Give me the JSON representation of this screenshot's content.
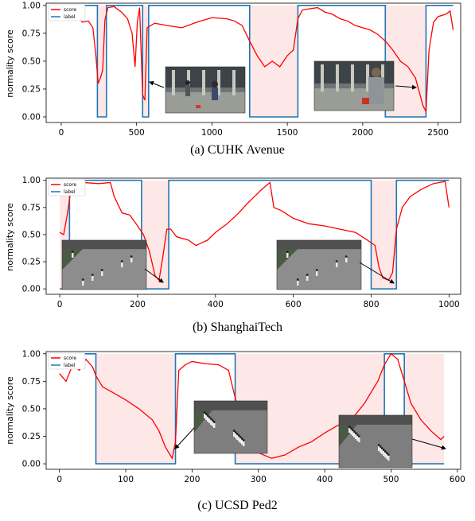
{
  "chart_data": [
    {
      "type": "line",
      "caption": "(a) CUHK Avenue",
      "ylabel": "normality score",
      "xlim": [
        -100,
        2650
      ],
      "ylim": [
        -0.05,
        1.02
      ],
      "xticks": [
        0,
        500,
        1000,
        1500,
        2000,
        2500
      ],
      "yticks": [
        0.0,
        0.25,
        0.5,
        0.75,
        1.0
      ],
      "ytick_labels": [
        "0.00",
        "0.25",
        "0.50",
        "0.75",
        "1.00"
      ],
      "legend": [
        "score",
        "label"
      ],
      "label_segments": [
        {
          "x": [
            0,
            240
          ],
          "v": 1
        },
        {
          "x": [
            240,
            300
          ],
          "v": 0
        },
        {
          "x": [
            300,
            540
          ],
          "v": 1
        },
        {
          "x": [
            540,
            580
          ],
          "v": 0
        },
        {
          "x": [
            580,
            1250
          ],
          "v": 1
        },
        {
          "x": [
            1250,
            1570
          ],
          "v": 0
        },
        {
          "x": [
            1570,
            2150
          ],
          "v": 1
        },
        {
          "x": [
            2150,
            2420
          ],
          "v": 0
        },
        {
          "x": [
            2420,
            2600
          ],
          "v": 1
        }
      ],
      "score": [
        [
          0,
          0.97
        ],
        [
          30,
          0.93
        ],
        [
          60,
          0.88
        ],
        [
          100,
          0.91
        ],
        [
          140,
          0.85
        ],
        [
          180,
          0.86
        ],
        [
          210,
          0.8
        ],
        [
          230,
          0.55
        ],
        [
          245,
          0.3
        ],
        [
          260,
          0.35
        ],
        [
          275,
          0.42
        ],
        [
          290,
          0.87
        ],
        [
          310,
          0.98
        ],
        [
          350,
          0.99
        ],
        [
          400,
          0.94
        ],
        [
          440,
          0.88
        ],
        [
          470,
          0.75
        ],
        [
          490,
          0.45
        ],
        [
          505,
          0.85
        ],
        [
          520,
          0.98
        ],
        [
          540,
          0.2
        ],
        [
          555,
          0.15
        ],
        [
          570,
          0.8
        ],
        [
          620,
          0.84
        ],
        [
          700,
          0.82
        ],
        [
          800,
          0.8
        ],
        [
          900,
          0.85
        ],
        [
          1000,
          0.89
        ],
        [
          1100,
          0.88
        ],
        [
          1150,
          0.86
        ],
        [
          1200,
          0.82
        ],
        [
          1250,
          0.68
        ],
        [
          1300,
          0.55
        ],
        [
          1350,
          0.45
        ],
        [
          1400,
          0.5
        ],
        [
          1450,
          0.45
        ],
        [
          1500,
          0.55
        ],
        [
          1540,
          0.6
        ],
        [
          1570,
          0.88
        ],
        [
          1600,
          0.96
        ],
        [
          1700,
          0.98
        ],
        [
          1750,
          0.94
        ],
        [
          1800,
          0.92
        ],
        [
          1850,
          0.88
        ],
        [
          1900,
          0.86
        ],
        [
          1950,
          0.82
        ],
        [
          2000,
          0.8
        ],
        [
          2050,
          0.78
        ],
        [
          2100,
          0.74
        ],
        [
          2150,
          0.68
        ],
        [
          2200,
          0.6
        ],
        [
          2250,
          0.5
        ],
        [
          2300,
          0.45
        ],
        [
          2350,
          0.35
        ],
        [
          2380,
          0.2
        ],
        [
          2400,
          0.1
        ],
        [
          2420,
          0.05
        ],
        [
          2440,
          0.6
        ],
        [
          2470,
          0.85
        ],
        [
          2500,
          0.9
        ],
        [
          2550,
          0.92
        ],
        [
          2580,
          0.95
        ],
        [
          2600,
          0.78
        ]
      ]
    },
    {
      "type": "line",
      "caption": "(b) ShanghaiTech",
      "ylabel": "normality score",
      "xlim": [
        -35,
        1030
      ],
      "ylim": [
        -0.05,
        1.02
      ],
      "xticks": [
        0,
        200,
        400,
        600,
        800,
        1000
      ],
      "yticks": [
        0.0,
        0.25,
        0.5,
        0.75,
        1.0
      ],
      "ytick_labels": [
        "0.00",
        "0.25",
        "0.50",
        "0.75",
        "1.00"
      ],
      "legend": [
        "score",
        "label"
      ],
      "label_segments": [
        {
          "x": [
            0,
            25
          ],
          "v": 0
        },
        {
          "x": [
            25,
            210
          ],
          "v": 1
        },
        {
          "x": [
            210,
            280
          ],
          "v": 0
        },
        {
          "x": [
            280,
            800
          ],
          "v": 1
        },
        {
          "x": [
            800,
            865
          ],
          "v": 0
        },
        {
          "x": [
            865,
            1000
          ],
          "v": 1
        }
      ],
      "score": [
        [
          0,
          0.52
        ],
        [
          10,
          0.5
        ],
        [
          20,
          0.7
        ],
        [
          30,
          0.95
        ],
        [
          40,
          0.97
        ],
        [
          60,
          0.98
        ],
        [
          100,
          0.97
        ],
        [
          130,
          0.98
        ],
        [
          140,
          0.85
        ],
        [
          160,
          0.7
        ],
        [
          180,
          0.68
        ],
        [
          200,
          0.58
        ],
        [
          215,
          0.5
        ],
        [
          230,
          0.35
        ],
        [
          245,
          0.12
        ],
        [
          255,
          0.08
        ],
        [
          265,
          0.3
        ],
        [
          275,
          0.55
        ],
        [
          285,
          0.55
        ],
        [
          300,
          0.48
        ],
        [
          330,
          0.45
        ],
        [
          350,
          0.4
        ],
        [
          380,
          0.45
        ],
        [
          400,
          0.52
        ],
        [
          430,
          0.6
        ],
        [
          460,
          0.7
        ],
        [
          480,
          0.78
        ],
        [
          500,
          0.85
        ],
        [
          520,
          0.92
        ],
        [
          540,
          0.98
        ],
        [
          550,
          0.75
        ],
        [
          570,
          0.72
        ],
        [
          600,
          0.65
        ],
        [
          640,
          0.6
        ],
        [
          680,
          0.58
        ],
        [
          720,
          0.55
        ],
        [
          760,
          0.52
        ],
        [
          790,
          0.45
        ],
        [
          810,
          0.4
        ],
        [
          820,
          0.2
        ],
        [
          830,
          0.1
        ],
        [
          845,
          0.08
        ],
        [
          855,
          0.15
        ],
        [
          865,
          0.55
        ],
        [
          880,
          0.75
        ],
        [
          900,
          0.85
        ],
        [
          930,
          0.92
        ],
        [
          960,
          0.97
        ],
        [
          990,
          0.99
        ],
        [
          1000,
          0.75
        ]
      ]
    },
    {
      "type": "line",
      "caption": "(c) UCSD Ped2",
      "ylabel": "normality score",
      "xlim": [
        -20,
        605
      ],
      "ylim": [
        -0.05,
        1.02
      ],
      "xticks": [
        0,
        100,
        200,
        300,
        400,
        500,
        600
      ],
      "yticks": [
        0.0,
        0.25,
        0.5,
        0.75,
        1.0
      ],
      "ytick_labels": [
        "0.00",
        "0.25",
        "0.50",
        "0.75",
        "1.00"
      ],
      "legend": [
        "score",
        "label"
      ],
      "label_segments": [
        {
          "x": [
            0,
            55
          ],
          "v": 1
        },
        {
          "x": [
            55,
            175
          ],
          "v": 0
        },
        {
          "x": [
            175,
            265
          ],
          "v": 1
        },
        {
          "x": [
            265,
            490
          ],
          "v": 0
        },
        {
          "x": [
            490,
            520
          ],
          "v": 1
        },
        {
          "x": [
            520,
            580
          ],
          "v": 0
        }
      ],
      "score": [
        [
          0,
          0.82
        ],
        [
          10,
          0.75
        ],
        [
          20,
          0.9
        ],
        [
          30,
          0.85
        ],
        [
          40,
          0.95
        ],
        [
          50,
          0.88
        ],
        [
          55,
          0.8
        ],
        [
          65,
          0.7
        ],
        [
          80,
          0.65
        ],
        [
          100,
          0.58
        ],
        [
          120,
          0.5
        ],
        [
          140,
          0.4
        ],
        [
          150,
          0.3
        ],
        [
          160,
          0.15
        ],
        [
          170,
          0.05
        ],
        [
          175,
          0.2
        ],
        [
          180,
          0.85
        ],
        [
          190,
          0.9
        ],
        [
          200,
          0.93
        ],
        [
          220,
          0.91
        ],
        [
          240,
          0.9
        ],
        [
          255,
          0.85
        ],
        [
          265,
          0.6
        ],
        [
          280,
          0.25
        ],
        [
          300,
          0.1
        ],
        [
          320,
          0.05
        ],
        [
          340,
          0.08
        ],
        [
          360,
          0.15
        ],
        [
          380,
          0.2
        ],
        [
          400,
          0.28
        ],
        [
          420,
          0.35
        ],
        [
          440,
          0.4
        ],
        [
          460,
          0.55
        ],
        [
          480,
          0.75
        ],
        [
          490,
          0.9
        ],
        [
          500,
          1.0
        ],
        [
          510,
          0.95
        ],
        [
          520,
          0.75
        ],
        [
          530,
          0.55
        ],
        [
          545,
          0.4
        ],
        [
          560,
          0.3
        ],
        [
          575,
          0.22
        ],
        [
          580,
          0.25
        ]
      ]
    }
  ],
  "colors": {
    "score": "#ff0000",
    "label": "#1f77b4",
    "shade": "#fde7e7",
    "axis": "#000000"
  }
}
